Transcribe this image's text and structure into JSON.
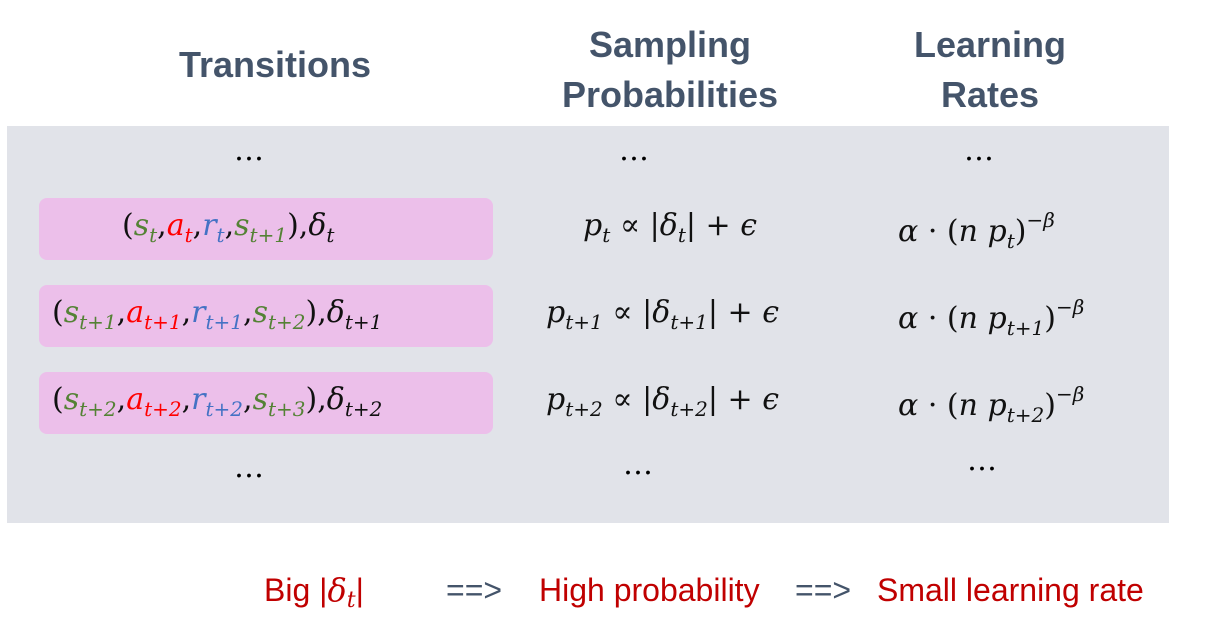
{
  "headers": {
    "transitions": "Transitions",
    "sampling_line1": "Sampling",
    "sampling_line2": "Probabilities",
    "learning_line1": "Learning",
    "learning_line2": "Rates"
  },
  "ellipsis": "…",
  "symbols": {
    "s": "s",
    "a": "a",
    "r": "r",
    "delta": "δ",
    "p": "p",
    "prop": "∝",
    "epsilon": "ϵ",
    "alpha": "α",
    "n": "n",
    "beta": "β",
    "dot": "·",
    "plus": "+",
    "minus": "−"
  },
  "rows": [
    {
      "sub_s1": "t",
      "sub_a": "t",
      "sub_r": "t",
      "sub_s2": "t+1",
      "sub_delta": "t",
      "sub_p": "t"
    },
    {
      "sub_s1": "t+1",
      "sub_a": "t+1",
      "sub_r": "t+1",
      "sub_s2": "t+2",
      "sub_delta": "t+1",
      "sub_p": "t+1"
    },
    {
      "sub_s1": "t+2",
      "sub_a": "t+2",
      "sub_r": "t+2",
      "sub_s2": "t+3",
      "sub_delta": "t+2",
      "sub_p": "t+2"
    }
  ],
  "bottom": {
    "big": "Big |",
    "big_delta": "δ",
    "big_sub": "t",
    "big_close": "|",
    "arrow1": "==>",
    "high_probability": "High probability",
    "arrow2": "==>",
    "small_learning_rate": "Small learning rate"
  }
}
